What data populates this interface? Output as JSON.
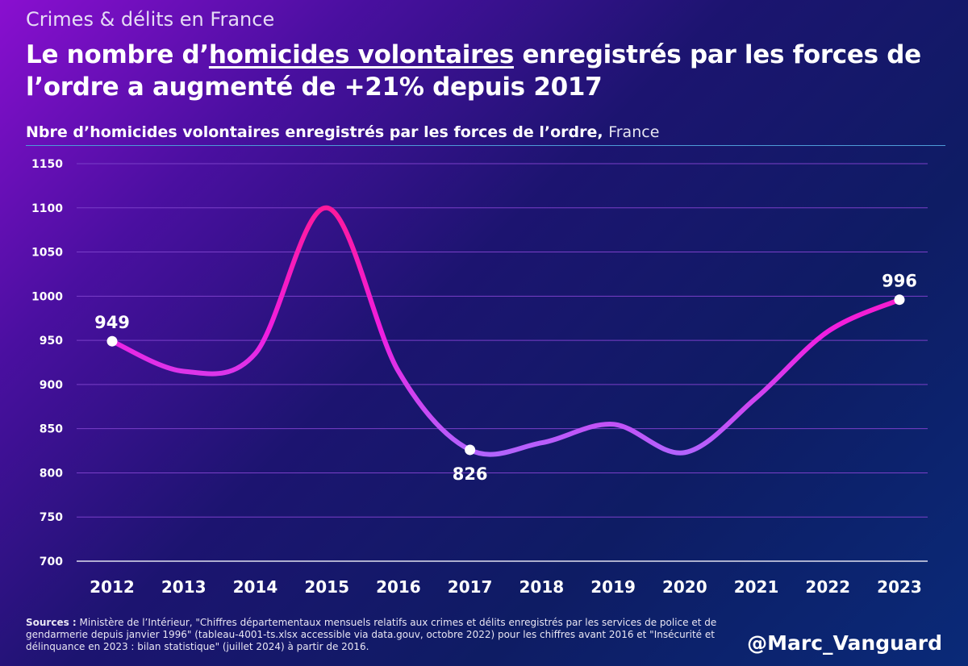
{
  "header": {
    "kicker": "Crimes & délits en France",
    "headline_pre": "Le nombre d’",
    "headline_underlined": "homicides volontaires",
    "headline_post": " enregistrés par les forces de l’ordre a augmenté de +21% depuis 2017",
    "subtitle_bold": "Nbre d’homicides volontaires enregistrés par les forces de l’ordre,",
    "subtitle_light": "France"
  },
  "colors": {
    "line_top": "#ff1a9a",
    "line_mid": "#f01ee0",
    "line_low": "#b066ff",
    "grid": "#7a3fc8",
    "axis": "#e0e0f0"
  },
  "chart_data": {
    "type": "line",
    "title": "Nbre d’homicides volontaires enregistrés par les forces de l’ordre, France",
    "xlabel": "",
    "ylabel": "",
    "categories": [
      "2012",
      "2013",
      "2014",
      "2015",
      "2016",
      "2017",
      "2018",
      "2019",
      "2020",
      "2021",
      "2022",
      "2023"
    ],
    "series": [
      {
        "name": "Homicides volontaires",
        "values": [
          949,
          915,
          935,
          1100,
          915,
          826,
          834,
          855,
          823,
          885,
          960,
          996
        ]
      }
    ],
    "ylim": [
      700,
      1150
    ],
    "yticks": [
      700,
      750,
      800,
      850,
      900,
      950,
      1000,
      1050,
      1100,
      1150
    ],
    "grid": true,
    "annotations": [
      {
        "category": "2012",
        "value": 949,
        "label": "949",
        "position": "above"
      },
      {
        "category": "2017",
        "value": 826,
        "label": "826",
        "position": "below"
      },
      {
        "category": "2023",
        "value": 996,
        "label": "996",
        "position": "above"
      }
    ]
  },
  "footer": {
    "sources_label": "Sources :",
    "sources_text": "Ministère de l’Intérieur, \"Chiffres départementaux mensuels relatifs aux crimes et délits enregistrés par les services de police et de gendarmerie depuis janvier 1996\" (tableau-4001-ts.xlsx accessible via data.gouv, octobre 2022) pour les chiffres avant 2016 et \"Insécurité et délinquance en 2023 : bilan statistique\" (juillet 2024) à partir de 2016.",
    "handle": "@Marc_Vanguard"
  }
}
